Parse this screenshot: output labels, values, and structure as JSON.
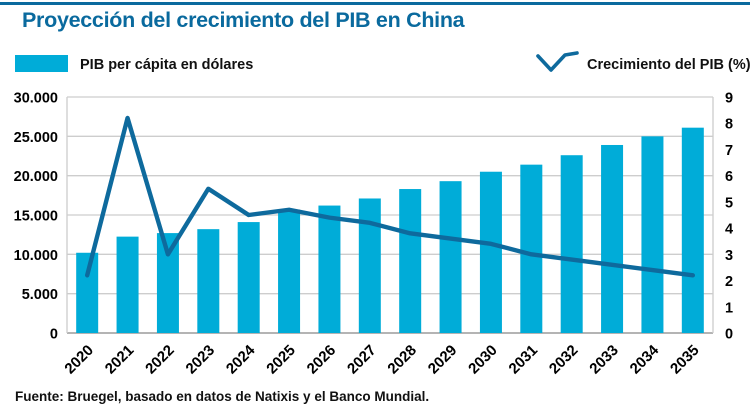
{
  "title": "Proyección del crecimiento del PIB en China",
  "legend": {
    "bars": "PIB per cápita en dólares",
    "line": "Crecimiento del PIB (%)"
  },
  "source": "Fuente: Bruegel, basado en datos de Natixis y el Banco Mundial.",
  "colors": {
    "bar": "#00acd8",
    "line": "#0e6a9d",
    "title": "#0a6a9e",
    "grid": "#cdcdcd",
    "axis_line": "#a9a9a9",
    "text": "#111111",
    "top_rule": "#0a6a9e"
  },
  "chart_data": {
    "type": "bar",
    "title": "Proyección del crecimiento del PIB en China",
    "categories": [
      "2020",
      "2021",
      "2022",
      "2023",
      "2024",
      "2025",
      "2026",
      "2027",
      "2028",
      "2029",
      "2030",
      "2031",
      "2032",
      "2033",
      "2034",
      "2035"
    ],
    "series": [
      {
        "name": "PIB per cápita en dólares",
        "type": "bar",
        "axis": "left",
        "values": [
          10200,
          12250,
          12700,
          13200,
          14100,
          15700,
          16200,
          17100,
          18300,
          19300,
          20500,
          21400,
          22600,
          23900,
          25000,
          26100
        ]
      },
      {
        "name": "Crecimiento del PIB (%)",
        "type": "line",
        "axis": "right",
        "values": [
          2.2,
          8.2,
          3.0,
          5.5,
          4.5,
          4.7,
          4.4,
          4.2,
          3.8,
          3.6,
          3.4,
          3.0,
          2.8,
          2.6,
          2.4,
          2.2
        ]
      }
    ],
    "left_axis": {
      "label": "PIB per cápita en dólares",
      "min": 0,
      "max": 30000,
      "tick_values": [
        0,
        5000,
        10000,
        15000,
        20000,
        25000,
        30000
      ],
      "tick_labels": [
        "0",
        "5.000",
        "10.000",
        "15.000",
        "20.000",
        "25.000",
        "30.000"
      ]
    },
    "right_axis": {
      "label": "Crecimiento del PIB (%)",
      "min": 0,
      "max": 9,
      "tick_values": [
        0,
        1,
        2,
        3,
        4,
        5,
        6,
        7,
        8,
        9
      ],
      "tick_labels": [
        "0",
        "1",
        "2",
        "3",
        "4",
        "5",
        "6",
        "7",
        "8",
        "9"
      ]
    },
    "grid": true,
    "legend_position": "top",
    "xlabel": "",
    "ylabel": ""
  }
}
